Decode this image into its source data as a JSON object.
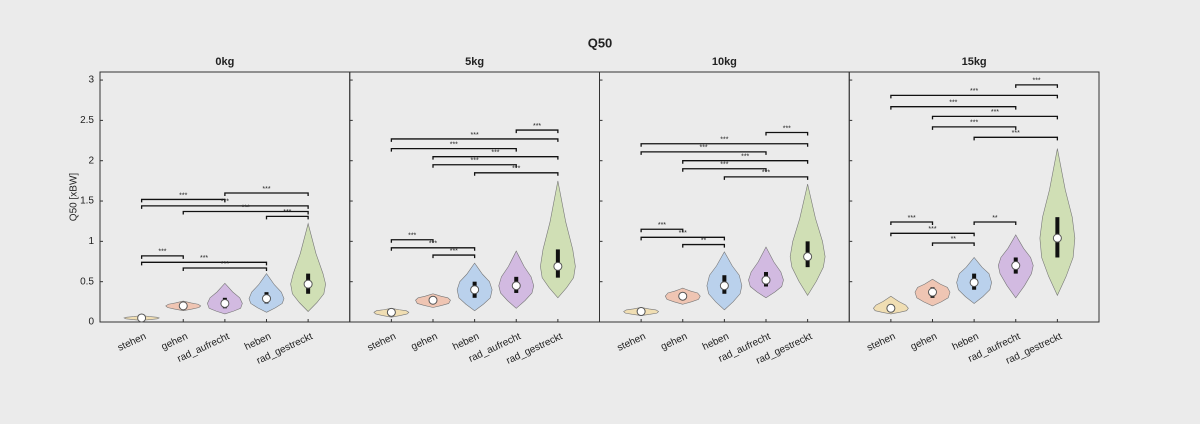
{
  "title": "Q50",
  "chart_data": [
    {
      "type": "violin",
      "title": "0kg",
      "ylabel": "Q50 [xBW]",
      "show_ytick_labels": true,
      "categories": [
        "stehen",
        "gehen",
        "rad_aufrecht",
        "heben",
        "rad_gestreckt"
      ],
      "colors": [
        "#f2d9a0",
        "#f0b8a0",
        "#c9a9dd",
        "#a9c8ec",
        "#c7dba3"
      ],
      "median": [
        0.05,
        0.2,
        0.23,
        0.29,
        0.47
      ],
      "min": [
        0.02,
        0.14,
        0.1,
        0.12,
        0.13
      ],
      "max": [
        0.08,
        0.26,
        0.48,
        0.6,
        1.22
      ],
      "q1": [
        0.04,
        0.18,
        0.17,
        0.23,
        0.35
      ],
      "q3": [
        0.06,
        0.22,
        0.3,
        0.37,
        0.6
      ],
      "xlim": [
        0,
        6
      ],
      "ylim": [
        0,
        3.1
      ],
      "yticks": [
        0,
        0.5,
        1,
        1.5,
        2,
        2.5,
        3
      ],
      "brackets": [
        {
          "from": 2,
          "to": 4,
          "y": 1.6,
          "label": "***"
        },
        {
          "from": 0,
          "to": 2,
          "y": 1.52,
          "label": "***"
        },
        {
          "from": 0,
          "to": 4,
          "y": 1.44,
          "label": "***"
        },
        {
          "from": 1,
          "to": 4,
          "y": 1.37,
          "label": "***"
        },
        {
          "from": 3,
          "to": 4,
          "y": 1.31,
          "label": "***"
        },
        {
          "from": 0,
          "to": 1,
          "y": 0.82,
          "label": "***"
        },
        {
          "from": 0,
          "to": 3,
          "y": 0.74,
          "label": "***"
        },
        {
          "from": 1,
          "to": 3,
          "y": 0.67,
          "label": "***"
        }
      ]
    },
    {
      "type": "violin",
      "title": "5kg",
      "show_ytick_labels": false,
      "categories": [
        "stehen",
        "gehen",
        "heben",
        "rad_aufrecht",
        "rad_gestreckt"
      ],
      "colors": [
        "#f2d9a0",
        "#f0b8a0",
        "#a9c8ec",
        "#c9a9dd",
        "#c7dba3"
      ],
      "median": [
        0.12,
        0.27,
        0.4,
        0.45,
        0.69
      ],
      "min": [
        0.06,
        0.18,
        0.14,
        0.17,
        0.3
      ],
      "max": [
        0.17,
        0.35,
        0.73,
        0.88,
        1.75
      ],
      "q1": [
        0.1,
        0.23,
        0.3,
        0.36,
        0.55
      ],
      "q3": [
        0.14,
        0.3,
        0.5,
        0.56,
        0.9
      ],
      "xlim": [
        0,
        6
      ],
      "ylim": [
        0,
        3.1
      ],
      "yticks": [
        0,
        0.5,
        1,
        1.5,
        2,
        2.5,
        3
      ],
      "brackets": [
        {
          "from": 3,
          "to": 4,
          "y": 2.38,
          "label": "***"
        },
        {
          "from": 0,
          "to": 4,
          "y": 2.27,
          "label": "***"
        },
        {
          "from": 0,
          "to": 3,
          "y": 2.15,
          "label": "***"
        },
        {
          "from": 1,
          "to": 4,
          "y": 2.05,
          "label": "***"
        },
        {
          "from": 1,
          "to": 3,
          "y": 1.95,
          "label": "***"
        },
        {
          "from": 2,
          "to": 4,
          "y": 1.85,
          "label": "***"
        },
        {
          "from": 0,
          "to": 1,
          "y": 1.02,
          "label": "***"
        },
        {
          "from": 0,
          "to": 2,
          "y": 0.92,
          "label": "***"
        },
        {
          "from": 1,
          "to": 2,
          "y": 0.83,
          "label": "***"
        }
      ]
    },
    {
      "type": "violin",
      "title": "10kg",
      "show_ytick_labels": false,
      "categories": [
        "stehen",
        "gehen",
        "heben",
        "rad_aufrecht",
        "rad_gestreckt"
      ],
      "colors": [
        "#f2d9a0",
        "#f0b8a0",
        "#a9c8ec",
        "#c9a9dd",
        "#c7dba3"
      ],
      "median": [
        0.13,
        0.32,
        0.45,
        0.52,
        0.81
      ],
      "min": [
        0.08,
        0.22,
        0.15,
        0.3,
        0.33
      ],
      "max": [
        0.18,
        0.42,
        0.87,
        0.93,
        1.71
      ],
      "q1": [
        0.11,
        0.28,
        0.35,
        0.44,
        0.68
      ],
      "q3": [
        0.15,
        0.36,
        0.58,
        0.62,
        1.0
      ],
      "xlim": [
        0,
        6
      ],
      "ylim": [
        0,
        3.1
      ],
      "yticks": [
        0,
        0.5,
        1,
        1.5,
        2,
        2.5,
        3
      ],
      "brackets": [
        {
          "from": 3,
          "to": 4,
          "y": 2.35,
          "label": "***"
        },
        {
          "from": 0,
          "to": 4,
          "y": 2.21,
          "label": "***"
        },
        {
          "from": 0,
          "to": 3,
          "y": 2.11,
          "label": "***"
        },
        {
          "from": 1,
          "to": 4,
          "y": 2.0,
          "label": "***"
        },
        {
          "from": 1,
          "to": 3,
          "y": 1.9,
          "label": "***"
        },
        {
          "from": 2,
          "to": 4,
          "y": 1.8,
          "label": "***"
        },
        {
          "from": 0,
          "to": 1,
          "y": 1.15,
          "label": "***"
        },
        {
          "from": 0,
          "to": 2,
          "y": 1.05,
          "label": "***"
        },
        {
          "from": 1,
          "to": 2,
          "y": 0.96,
          "label": "**"
        }
      ]
    },
    {
      "type": "violin",
      "title": "15kg",
      "show_ytick_labels": false,
      "categories": [
        "stehen",
        "gehen",
        "heben",
        "rad_aufrecht",
        "rad_gestreckt"
      ],
      "colors": [
        "#f2d9a0",
        "#f0b8a0",
        "#a9c8ec",
        "#c9a9dd",
        "#c7dba3"
      ],
      "median": [
        0.17,
        0.37,
        0.49,
        0.7,
        1.04
      ],
      "min": [
        0.1,
        0.2,
        0.23,
        0.3,
        0.33
      ],
      "max": [
        0.32,
        0.53,
        0.8,
        1.08,
        2.15
      ],
      "q1": [
        0.14,
        0.3,
        0.4,
        0.6,
        0.8
      ],
      "q3": [
        0.21,
        0.43,
        0.6,
        0.8,
        1.3
      ],
      "xlim": [
        0,
        6
      ],
      "ylim": [
        0,
        3.1
      ],
      "yticks": [
        0,
        0.5,
        1,
        1.5,
        2,
        2.5,
        3
      ],
      "brackets": [
        {
          "from": 3,
          "to": 4,
          "y": 2.94,
          "label": "***"
        },
        {
          "from": 0,
          "to": 4,
          "y": 2.81,
          "label": "***"
        },
        {
          "from": 0,
          "to": 3,
          "y": 2.67,
          "label": "***"
        },
        {
          "from": 1,
          "to": 4,
          "y": 2.55,
          "label": "***"
        },
        {
          "from": 1,
          "to": 3,
          "y": 2.42,
          "label": "***"
        },
        {
          "from": 2,
          "to": 4,
          "y": 2.29,
          "label": "***"
        },
        {
          "from": 0,
          "to": 1,
          "y": 1.24,
          "label": "***"
        },
        {
          "from": 0,
          "to": 2,
          "y": 1.1,
          "label": "***"
        },
        {
          "from": 1,
          "to": 2,
          "y": 0.98,
          "label": "**"
        },
        {
          "from": 2,
          "to": 3,
          "y": 1.24,
          "label": "**"
        }
      ]
    }
  ]
}
